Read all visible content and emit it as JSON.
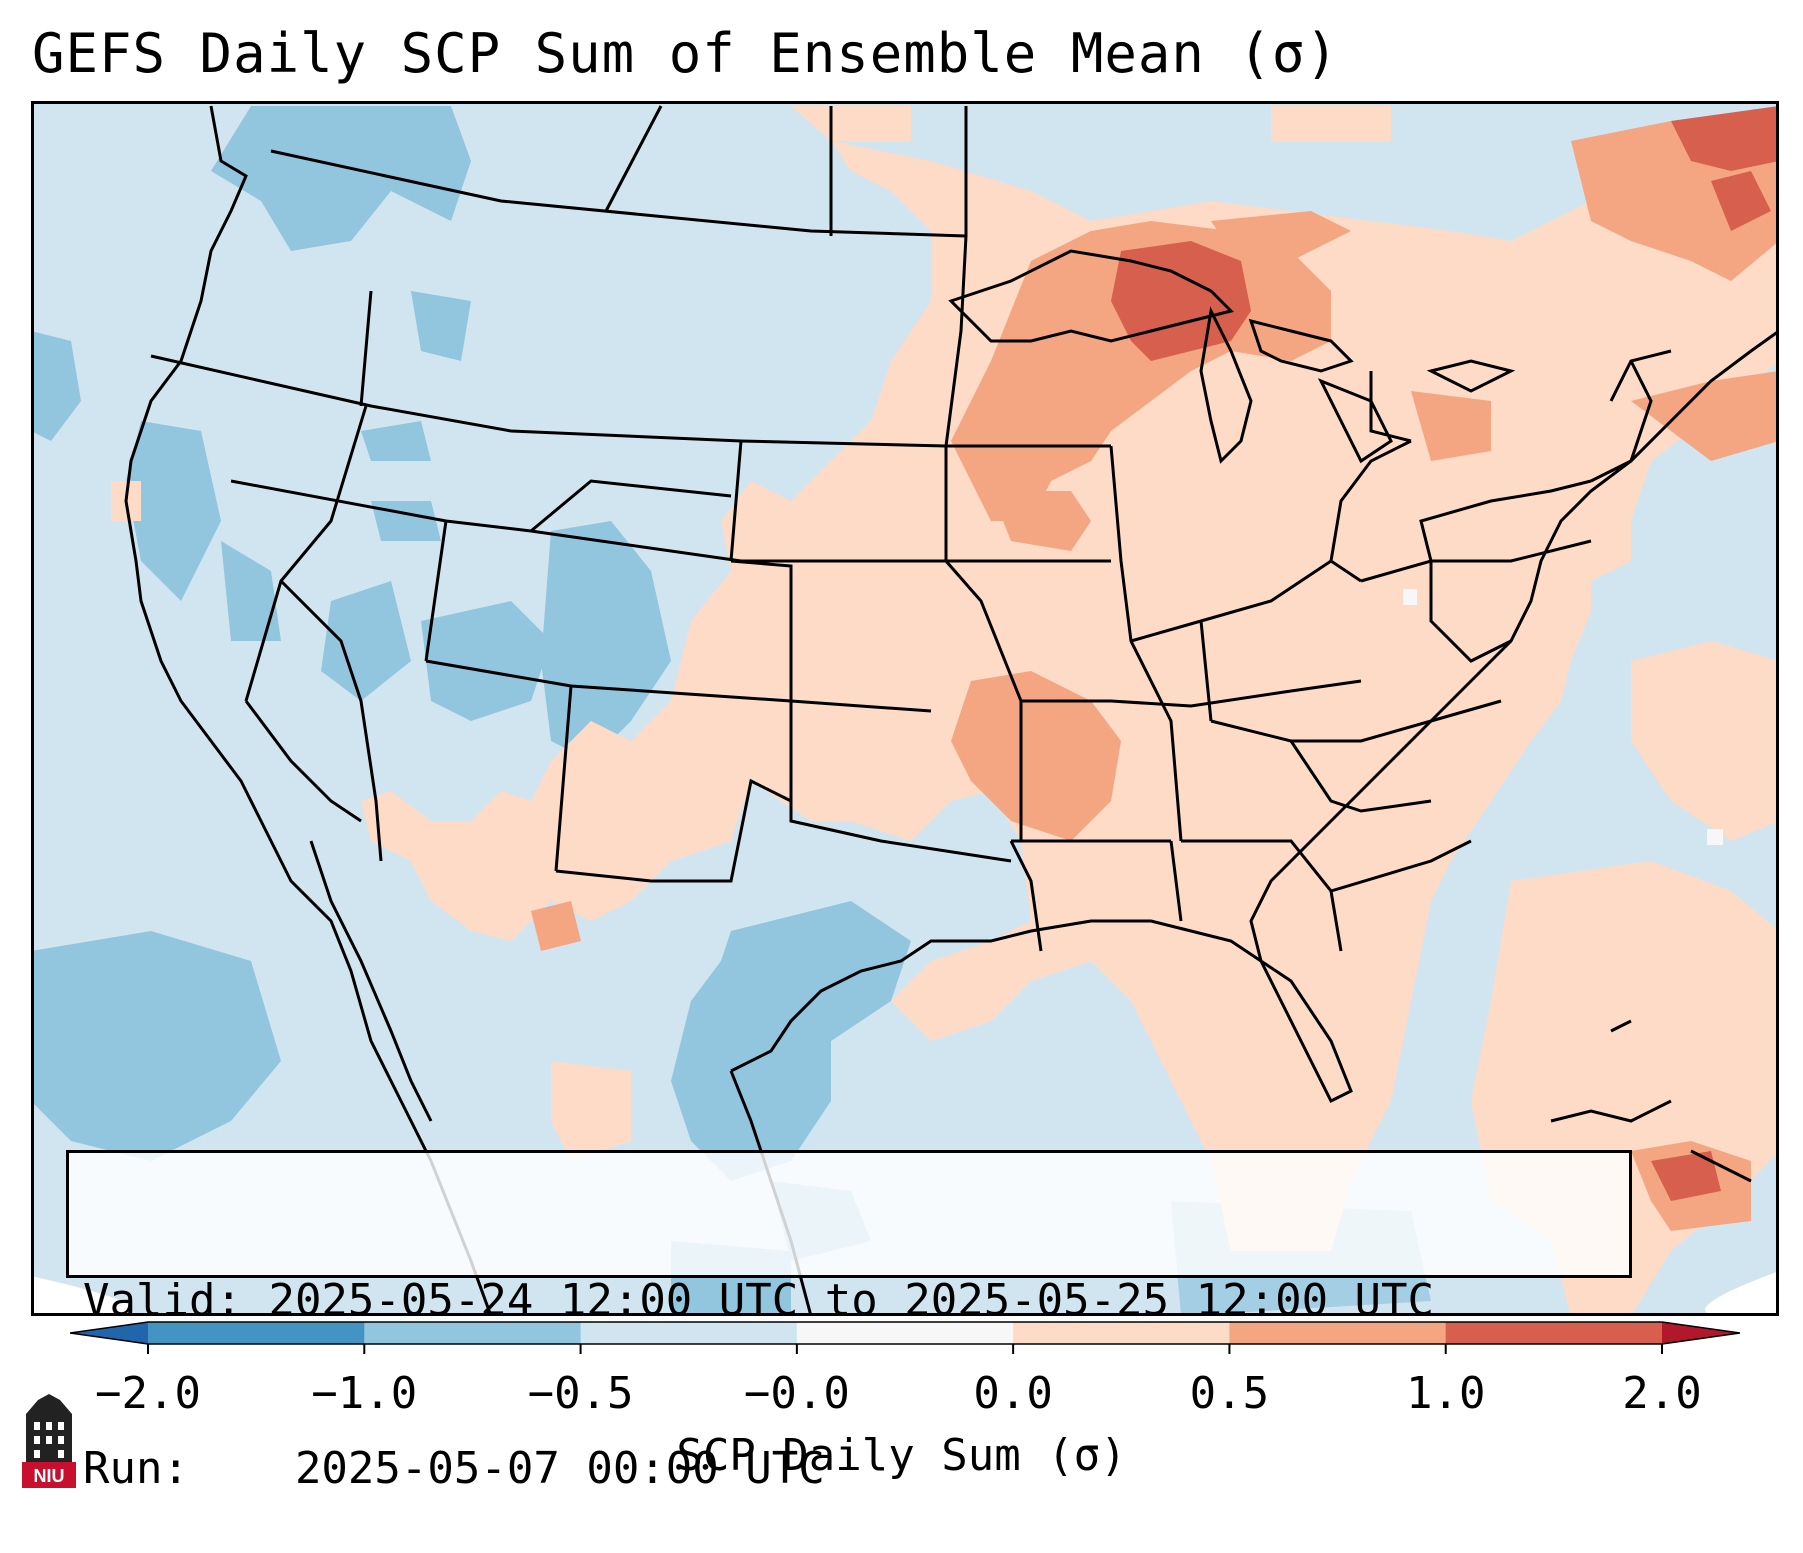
{
  "title": "GEFS Daily SCP Sum of Ensemble Mean (σ)",
  "info": {
    "valid_label": "Valid:",
    "valid_value": "2025-05-24 12:00 UTC to 2025-05-25 12:00 UTC",
    "run_label": "Run:",
    "run_value": "2025-05-07 00:00 UTC"
  },
  "colorbar": {
    "label": "SCP Daily Sum (σ)",
    "ticks": [
      "−2.0",
      "−1.0",
      "−0.5",
      "−0.0",
      "0.0",
      "0.5",
      "1.0",
      "2.0"
    ],
    "bins": [
      {
        "from": -2.0,
        "to": -1.0,
        "color": "#4393c3"
      },
      {
        "from": -1.0,
        "to": -0.5,
        "color": "#92c5de"
      },
      {
        "from": -0.5,
        "to": -0.0,
        "color": "#d1e5f0"
      },
      {
        "from": -0.0,
        "to": 0.0,
        "color": "#f7f7f7"
      },
      {
        "from": 0.0,
        "to": 0.5,
        "color": "#fddbc7"
      },
      {
        "from": 0.5,
        "to": 1.0,
        "color": "#f4a582"
      },
      {
        "from": 1.0,
        "to": 2.0,
        "color": "#d6604d"
      }
    ],
    "under_color": "#2166ac",
    "over_color": "#b2182b"
  },
  "logo": {
    "text": "NIU"
  },
  "colors": {
    "background_field": "#d1e5f0",
    "low_anomaly": "#92c5de",
    "mid_positive": "#fddbc7",
    "high_positive": "#f4a582",
    "peak_positive": "#d6604d",
    "boundaries": "#000000"
  }
}
